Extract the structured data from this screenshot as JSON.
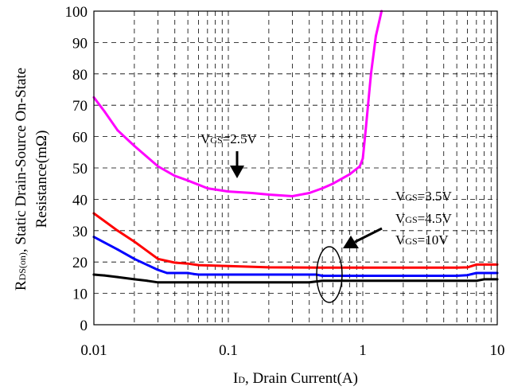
{
  "chart_data": {
    "type": "line",
    "x_scale": "log",
    "xlim": [
      0.01,
      10
    ],
    "ylim": [
      0,
      100
    ],
    "grid": true,
    "x_ticks": [
      {
        "value": 0.01,
        "label": "0.01"
      },
      {
        "value": 0.1,
        "label": "0.1"
      },
      {
        "value": 1,
        "label": "1"
      },
      {
        "value": 10,
        "label": "10"
      }
    ],
    "y_ticks": [
      {
        "value": 0,
        "label": "0"
      },
      {
        "value": 10,
        "label": "10"
      },
      {
        "value": 20,
        "label": "20"
      },
      {
        "value": 30,
        "label": "30"
      },
      {
        "value": 40,
        "label": "40"
      },
      {
        "value": 50,
        "label": "50"
      },
      {
        "value": 60,
        "label": "60"
      },
      {
        "value": 70,
        "label": "70"
      },
      {
        "value": 80,
        "label": "80"
      },
      {
        "value": 90,
        "label": "90"
      },
      {
        "value": 100,
        "label": "100"
      }
    ],
    "xlabel": {
      "main": "I",
      "sub": "D",
      "rest": ", Drain Current(A)"
    },
    "ylabel": {
      "line1_main": "R",
      "line1_sub": "DS(on)",
      "line1_rest": ", Static Drain-Source On-State",
      "line2": "Resistance(mΩ)"
    },
    "annotations": [
      {
        "main": "V",
        "sub": "GS",
        "rest": "=2.5V"
      },
      {
        "main": "V",
        "sub": "GS",
        "rest": "=3.5V"
      },
      {
        "main": "V",
        "sub": "GS",
        "rest": "=4.5V"
      },
      {
        "main": "V",
        "sub": "GS",
        "rest": "=10V"
      }
    ],
    "series": [
      {
        "color": "#ff00ff",
        "x": [
          0.01,
          0.012,
          0.015,
          0.02,
          0.03,
          0.04,
          0.05,
          0.07,
          0.1,
          0.15,
          0.2,
          0.3,
          0.4,
          0.5,
          0.6,
          0.8,
          0.95,
          1.0,
          1.05,
          1.15,
          1.25,
          1.38
        ],
        "y": [
          72.5,
          68,
          62,
          57,
          50.5,
          47.5,
          46,
          43.5,
          42.5,
          42,
          41.5,
          41,
          42,
          43.5,
          45,
          48,
          50.5,
          53,
          62,
          80,
          92,
          100
        ]
      },
      {
        "color": "#ff0000",
        "x": [
          0.01,
          0.015,
          0.02,
          0.03,
          0.04,
          0.05,
          0.06,
          0.1,
          0.2,
          0.5,
          1,
          2,
          5,
          6,
          7,
          10
        ],
        "y": [
          35.5,
          30,
          26.5,
          21,
          19.8,
          19.5,
          19,
          18.7,
          18.3,
          18.2,
          18.2,
          18.2,
          18.2,
          18.3,
          19.2,
          19.2
        ]
      },
      {
        "color": "#0000ff",
        "x": [
          0.01,
          0.015,
          0.02,
          0.03,
          0.035,
          0.05,
          0.055,
          0.06,
          0.1,
          0.3,
          0.45,
          0.5,
          1,
          5,
          6,
          7,
          10
        ],
        "y": [
          28,
          24,
          21,
          17.5,
          16.5,
          16.5,
          16.2,
          16,
          16,
          16,
          16,
          15.6,
          15.6,
          15.6,
          15.8,
          16.5,
          16.5
        ]
      },
      {
        "color": "#000000",
        "x": [
          0.01,
          0.012,
          0.015,
          0.02,
          0.025,
          0.03,
          0.1,
          0.3,
          0.4,
          0.5,
          1,
          5,
          7,
          8,
          10
        ],
        "y": [
          16,
          15.7,
          15.2,
          14.5,
          14,
          13.5,
          13.5,
          13.5,
          13.5,
          14,
          14,
          14,
          14,
          14.5,
          14.5
        ]
      }
    ]
  }
}
